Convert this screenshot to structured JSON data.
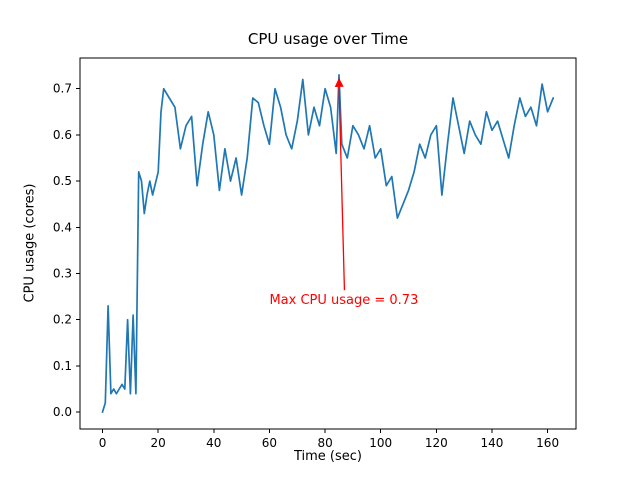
{
  "chart_data": {
    "type": "line",
    "title": "CPU usage over Time",
    "xlabel": "Time (sec)",
    "ylabel": "CPU usage (cores)",
    "xlim": [
      -8.1,
      170.2
    ],
    "ylim": [
      -0.0365,
      0.7665
    ],
    "x_ticks": [
      0,
      20,
      40,
      60,
      80,
      100,
      120,
      140,
      160
    ],
    "x_tick_labels": [
      "0",
      "20",
      "40",
      "60",
      "80",
      "100",
      "120",
      "140",
      "160"
    ],
    "y_ticks": [
      0.0,
      0.1,
      0.2,
      0.3,
      0.4,
      0.5,
      0.6,
      0.7
    ],
    "y_tick_labels": [
      "0.0",
      "0.1",
      "0.2",
      "0.3",
      "0.4",
      "0.5",
      "0.6",
      "0.7"
    ],
    "grid": false,
    "legend": "none",
    "line_color": "#1f77b4",
    "series": [
      {
        "name": "CPU usage",
        "x": [
          0,
          1,
          2,
          3,
          4,
          5,
          6,
          7,
          8,
          9,
          10,
          11,
          12,
          13,
          14,
          15,
          16,
          17,
          18,
          20,
          21,
          22,
          24,
          26,
          28,
          30,
          32,
          34,
          36,
          38,
          40,
          42,
          44,
          46,
          48,
          50,
          52,
          54,
          56,
          58,
          60,
          62,
          64,
          66,
          68,
          70,
          72,
          74,
          76,
          78,
          80,
          82,
          84,
          85,
          86,
          88,
          90,
          92,
          94,
          96,
          98,
          100,
          102,
          104,
          106,
          108,
          110,
          112,
          114,
          116,
          118,
          120,
          122,
          124,
          126,
          128,
          130,
          132,
          134,
          136,
          138,
          140,
          142,
          144,
          146,
          148,
          150,
          152,
          154,
          156,
          158,
          160,
          162
        ],
        "y": [
          0.0,
          0.02,
          0.23,
          0.04,
          0.05,
          0.04,
          0.05,
          0.06,
          0.05,
          0.2,
          0.04,
          0.21,
          0.04,
          0.52,
          0.5,
          0.43,
          0.47,
          0.5,
          0.47,
          0.52,
          0.65,
          0.7,
          0.68,
          0.66,
          0.57,
          0.62,
          0.64,
          0.49,
          0.58,
          0.65,
          0.6,
          0.48,
          0.57,
          0.5,
          0.55,
          0.47,
          0.55,
          0.68,
          0.67,
          0.62,
          0.58,
          0.7,
          0.66,
          0.6,
          0.57,
          0.63,
          0.72,
          0.6,
          0.66,
          0.62,
          0.7,
          0.66,
          0.56,
          0.73,
          0.58,
          0.55,
          0.62,
          0.6,
          0.57,
          0.62,
          0.55,
          0.57,
          0.49,
          0.51,
          0.42,
          0.45,
          0.48,
          0.52,
          0.58,
          0.55,
          0.6,
          0.62,
          0.47,
          0.58,
          0.68,
          0.62,
          0.56,
          0.63,
          0.6,
          0.58,
          0.65,
          0.61,
          0.63,
          0.59,
          0.55,
          0.62,
          0.68,
          0.64,
          0.66,
          0.62,
          0.71,
          0.65,
          0.68
        ]
      }
    ],
    "annotation": {
      "text": "Max CPU usage = 0.73",
      "color": "#ff0000",
      "xy": [
        85,
        0.73
      ],
      "xytext": [
        60,
        0.225
      ]
    }
  }
}
